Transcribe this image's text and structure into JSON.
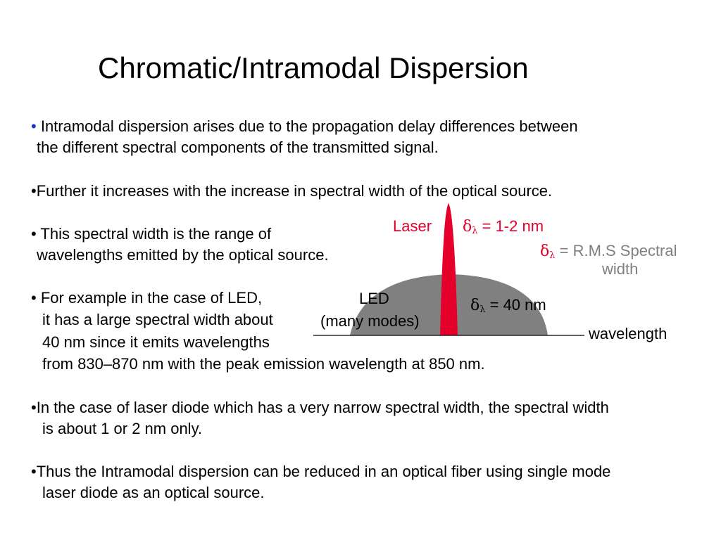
{
  "title": "Chromatic/Intramodal Dispersion",
  "bullet_symbol": "•",
  "paragraphs": {
    "p1_line1": "Intramodal dispersion arises due to the propagation delay differences between",
    "p1_line2": "the different spectral components of the transmitted signal.",
    "p2_line1": "•Further it increases with the increase in spectral width of the optical source.",
    "p3_line1": "• This spectral width is the range of",
    "p3_line2": "wavelengths emitted by the optical source.",
    "p4_line1": "• For example in the case of LED,",
    "p4_line2": "it has a large spectral width about",
    "p4_line3": "40 nm since it emits wavelengths",
    "p4_line4": "from 830–870 nm with the peak emission wavelength at 850 nm.",
    "p5_line1": "•In the case of laser diode which has a very narrow spectral width, the spectral width",
    "p5_line2": "is about 1 or 2 nm only.",
    "p6_line1": "•Thus the Intramodal dispersion can be reduced in an optical fiber using single mode",
    "p6_line2": "laser diode as an optical source."
  },
  "diagram": {
    "laser_label": "Laser",
    "delta_symbol": "δ",
    "lambda_symbol": "λ",
    "laser_width_value": " = 1-2 nm",
    "rms_value": " = R.M.S Spectral",
    "rms_line2": "width",
    "led_label": "LED",
    "led_modes": "(many modes)",
    "led_width_value": " = 40 nm",
    "axis_label": "wavelength",
    "colors": {
      "laser": "#e4002b",
      "led": "#808080",
      "axis": "#000000",
      "annotation_grey": "#7f7f7f"
    }
  }
}
